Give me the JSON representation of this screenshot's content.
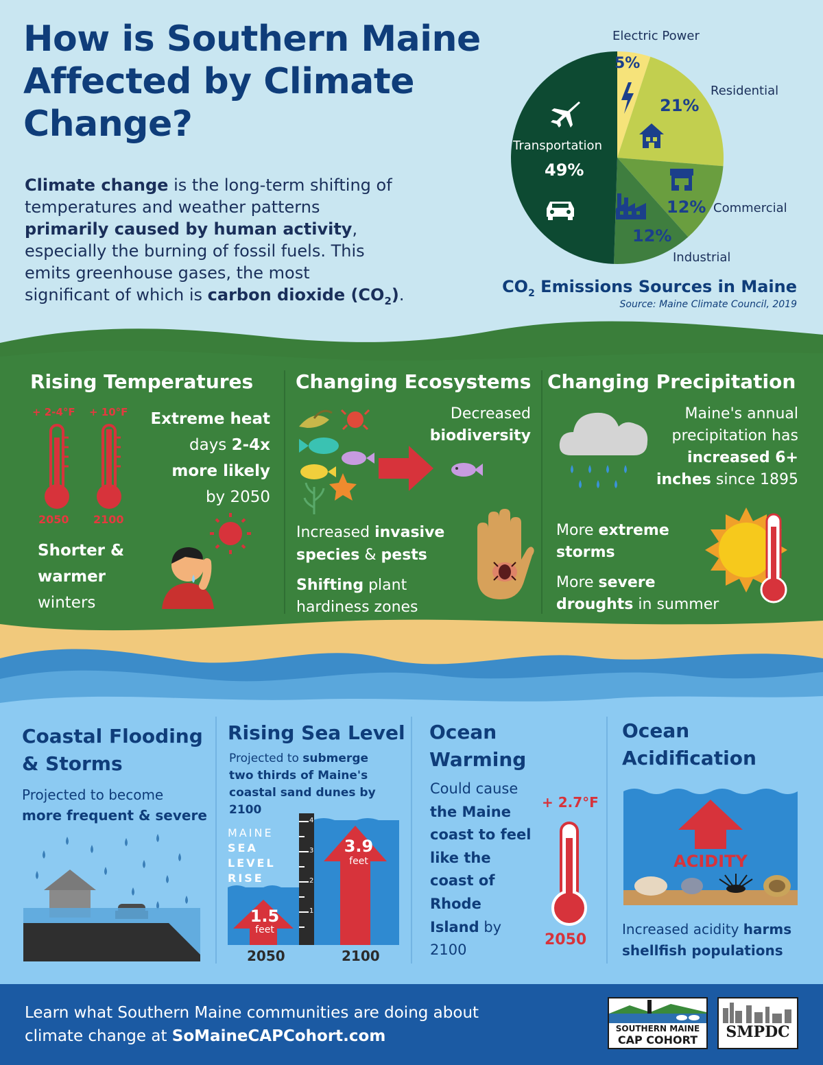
{
  "title": {
    "line1": "How is Southern Maine",
    "line2": "Affected by Climate",
    "line3": "Change?"
  },
  "intro": {
    "l1_b": "Climate change",
    "l1_r": " is the long-term shifting of",
    "l2": "temperatures and weather patterns",
    "l3_b": "primarily caused by human activity",
    "l3_r": ",",
    "l4": "especially the burning of fossil fuels. This",
    "l5": "emits greenhouse gases, the most",
    "l6_r": "significant of which is ",
    "l6_b": "carbon dioxide (CO",
    "l6_sub": "2",
    "l6_end": ")",
    "l6_dot": "."
  },
  "chart_data": {
    "type": "pie",
    "title": "CO2 Emissions Sources in Maine",
    "source": "Source: Maine Climate Council, 2019",
    "slices": [
      {
        "label": "Electric Power",
        "value": 5,
        "display": "5%",
        "color": "#f6e37a"
      },
      {
        "label": "Residential",
        "value": 21,
        "display": "21%",
        "color": "#c2cf4f"
      },
      {
        "label": "Commercial",
        "value": 12,
        "display": "12%",
        "color": "#6a9e3f"
      },
      {
        "label": "Industrial",
        "value": 12,
        "display": "12%",
        "color": "#3f7e3f"
      },
      {
        "label": "Transportation",
        "value": 49,
        "display": "49%",
        "color": "#0d4a32"
      }
    ]
  },
  "chart_title": {
    "co": "CO",
    "sub": "2",
    "rest": " Emissions Sources in Maine"
  },
  "rising_temps": {
    "title": "Rising Temperatures",
    "t1": "+ 2-4°F",
    "t2": "+ 10°F",
    "y1": "2050",
    "y2": "2100",
    "heat_b": "Extreme heat",
    "heat_l2_r": "days ",
    "heat_l2_b": "2-4x",
    "heat_l3_b": "more likely",
    "heat_l4": "by 2050",
    "winter_b1": "Shorter &",
    "winter_b2": "warmer",
    "winter_r": "winters"
  },
  "ecosystems": {
    "title": "Changing Ecosystems",
    "dec": "Decreased",
    "bio": "biodiversity",
    "inv_r": "Increased ",
    "inv_b": "invasive",
    "inv2_b": "species",
    "inv2_r": " & ",
    "inv2_b2": "pests",
    "shift_b": "Shifting",
    "shift_r": " plant",
    "shift_l2": "hardiness zones"
  },
  "precip": {
    "title": "Changing Precipitation",
    "l1": "Maine's annual",
    "l2": "precipitation has",
    "l3_b": "increased 6+",
    "l4_b": "inches",
    "l4_r": " since 1895",
    "st_r": "More ",
    "st_b": "extreme",
    "st2_b": "storms",
    "dr_r": "More ",
    "dr_b": "severe",
    "dr2_b": "droughts",
    "dr2_r": " in summer"
  },
  "coastal": {
    "title1": "Coastal Flooding",
    "title2": "& Storms",
    "l1": "Projected to become",
    "l2_b": "more frequent & severe"
  },
  "sealevel": {
    "title": "Rising Sea Level",
    "l1_r": "Projected to ",
    "l1_b": "submerge",
    "l2_b": "two thirds of Maine's",
    "l3_b": "coastal sand dunes by",
    "l4_b": "2100",
    "lbl1": "MAINE",
    "lbl2": "SEA",
    "lbl3": "LEVEL",
    "lbl4": "RISE",
    "v1": "1.5",
    "v2": "3.9",
    "unit": "feet",
    "y1": "2050",
    "y2": "2100",
    "ticks": [
      "4",
      "3",
      "2",
      "1"
    ]
  },
  "ocean_warming": {
    "title1": "Ocean",
    "title2": "Warming",
    "l1": "Could cause",
    "l2_b": "the Maine",
    "l3_b": "coast to feel",
    "l4_b": "like the",
    "l5_b": "coast of",
    "l6_b": "Rhode",
    "l7_b": "Island",
    "l7_r": " by",
    "l8": "2100",
    "temp": "+ 2.7°F",
    "year": "2050"
  },
  "acid": {
    "title1": "Ocean",
    "title2": "Acidification",
    "label": "ACIDITY",
    "l1_r": "Increased acidity ",
    "l1_b": "harms",
    "l2_b": "shellfish populations"
  },
  "footer": {
    "l1": "Learn what Southern Maine communities are doing about",
    "l2_r": "climate change at ",
    "l2_b": "SoMaineCAPCohort.com",
    "logo1_a": "SOUTHERN MAINE",
    "logo1_b": "CAP COHORT",
    "logo2": "SMPDC"
  }
}
